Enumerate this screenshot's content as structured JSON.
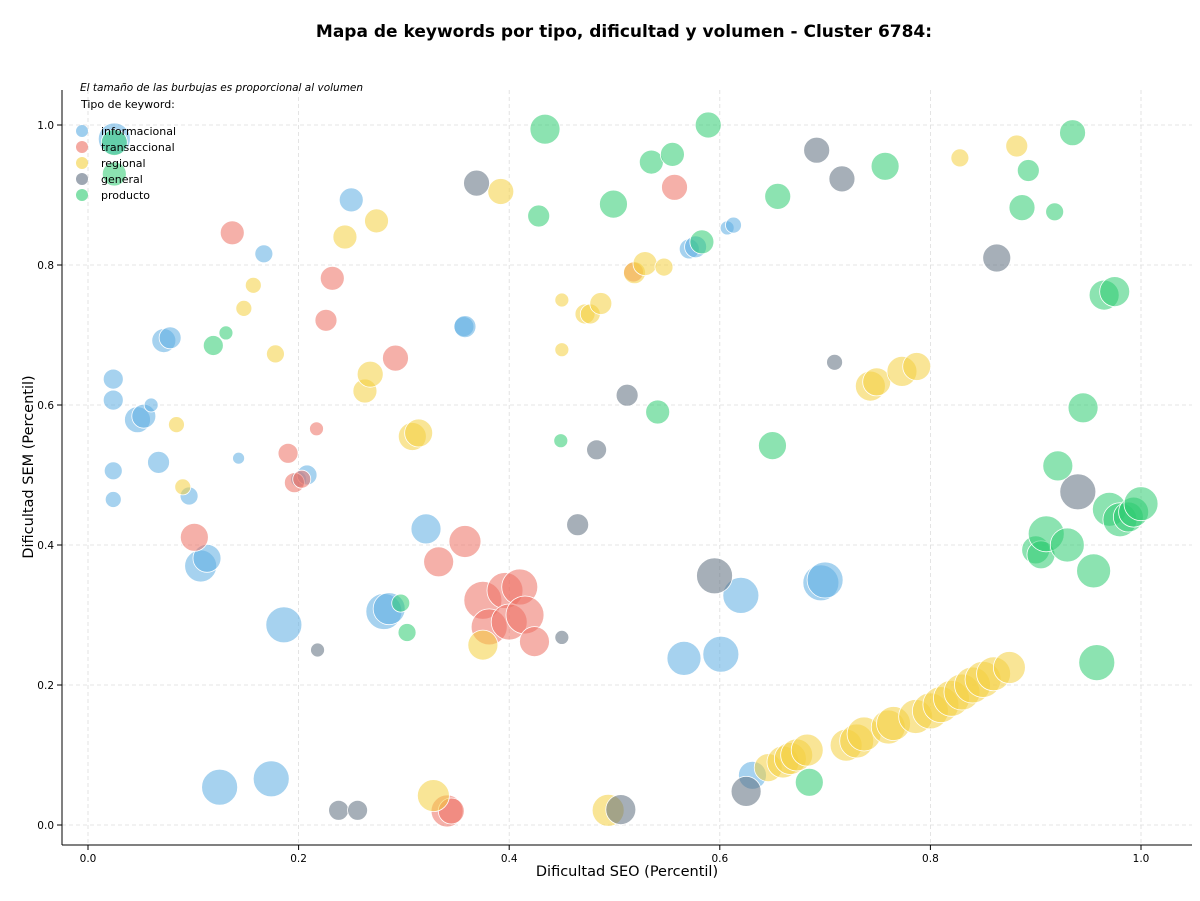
{
  "chart_data": {
    "type": "scatter",
    "title": "Mapa de keywords por tipo, dificultad y volumen - Cluster 6784:",
    "xlabel": "Dificultad SEO (Percentil)",
    "ylabel": "Dificultad SEM (Percentil)",
    "xlim": [
      -0.025,
      1.05
    ],
    "ylim": [
      -0.025,
      1.05
    ],
    "xticks": [
      "0.0",
      "0.2",
      "0.4",
      "0.6",
      "0.8",
      "1.0"
    ],
    "yticks": [
      "0.0",
      "0.2",
      "0.4",
      "0.6",
      "0.8",
      "1.0"
    ],
    "grid": true,
    "note": "El tamaño de las burbujas es proporcional al volumen",
    "legend_title": "Tipo de keyword:",
    "legend_position": "top-left",
    "series": [
      {
        "name": "informacional",
        "color": "#5DADE2",
        "points": [
          [
            0.025,
            0.98,
            16
          ],
          [
            0.024,
            0.637,
            10
          ],
          [
            0.024,
            0.607,
            10
          ],
          [
            0.024,
            0.506,
            9
          ],
          [
            0.024,
            0.465,
            8
          ],
          [
            0.047,
            0.579,
            13
          ],
          [
            0.053,
            0.584,
            12
          ],
          [
            0.06,
            0.6,
            7
          ],
          [
            0.067,
            0.518,
            11
          ],
          [
            0.072,
            0.692,
            12
          ],
          [
            0.078,
            0.696,
            11
          ],
          [
            0.096,
            0.47,
            9
          ],
          [
            0.107,
            0.37,
            16
          ],
          [
            0.113,
            0.381,
            14
          ],
          [
            0.125,
            0.054,
            18
          ],
          [
            0.143,
            0.524,
            6
          ],
          [
            0.167,
            0.816,
            9
          ],
          [
            0.174,
            0.066,
            18
          ],
          [
            0.186,
            0.286,
            18
          ],
          [
            0.2,
            0.494,
            8
          ],
          [
            0.208,
            0.5,
            10
          ],
          [
            0.25,
            0.893,
            12
          ],
          [
            0.281,
            0.305,
            18
          ],
          [
            0.286,
            0.309,
            16
          ],
          [
            0.321,
            0.423,
            15
          ],
          [
            0.357,
            0.712,
            10
          ],
          [
            0.358,
            0.712,
            11
          ],
          [
            0.566,
            0.238,
            17
          ],
          [
            0.571,
            0.823,
            10
          ],
          [
            0.577,
            0.826,
            11
          ],
          [
            0.601,
            0.244,
            18
          ],
          [
            0.607,
            0.853,
            7
          ],
          [
            0.613,
            0.857,
            8
          ],
          [
            0.62,
            0.328,
            18
          ],
          [
            0.631,
            0.071,
            14
          ],
          [
            0.696,
            0.346,
            18
          ],
          [
            0.7,
            0.35,
            18
          ]
        ]
      },
      {
        "name": "transaccional",
        "color": "#EC7063",
        "points": [
          [
            0.101,
            0.411,
            14
          ],
          [
            0.137,
            0.846,
            12
          ],
          [
            0.19,
            0.531,
            10
          ],
          [
            0.196,
            0.489,
            10
          ],
          [
            0.203,
            0.494,
            9
          ],
          [
            0.217,
            0.566,
            7
          ],
          [
            0.226,
            0.721,
            11
          ],
          [
            0.232,
            0.781,
            12
          ],
          [
            0.292,
            0.667,
            13
          ],
          [
            0.333,
            0.376,
            15
          ],
          [
            0.341,
            0.02,
            16
          ],
          [
            0.345,
            0.02,
            13
          ],
          [
            0.358,
            0.405,
            16
          ],
          [
            0.375,
            0.321,
            19
          ],
          [
            0.381,
            0.283,
            18
          ],
          [
            0.396,
            0.335,
            18
          ],
          [
            0.4,
            0.29,
            18
          ],
          [
            0.41,
            0.34,
            18
          ],
          [
            0.415,
            0.3,
            19
          ],
          [
            0.424,
            0.262,
            15
          ],
          [
            0.557,
            0.911,
            13
          ],
          [
            0.518,
            0.79,
            10
          ]
        ]
      },
      {
        "name": "regional",
        "color": "#F4D03F",
        "points": [
          [
            0.084,
            0.572,
            8
          ],
          [
            0.09,
            0.483,
            8
          ],
          [
            0.148,
            0.738,
            8
          ],
          [
            0.157,
            0.771,
            8
          ],
          [
            0.178,
            0.673,
            9
          ],
          [
            0.244,
            0.84,
            12
          ],
          [
            0.274,
            0.863,
            12
          ],
          [
            0.263,
            0.62,
            12
          ],
          [
            0.268,
            0.644,
            13
          ],
          [
            0.308,
            0.555,
            14
          ],
          [
            0.314,
            0.56,
            14
          ],
          [
            0.328,
            0.042,
            16
          ],
          [
            0.375,
            0.257,
            15
          ],
          [
            0.392,
            0.905,
            13
          ],
          [
            0.45,
            0.75,
            7
          ],
          [
            0.45,
            0.679,
            7
          ],
          [
            0.472,
            0.73,
            10
          ],
          [
            0.477,
            0.73,
            10
          ],
          [
            0.487,
            0.745,
            11
          ],
          [
            0.494,
            0.021,
            16
          ],
          [
            0.519,
            0.789,
            11
          ],
          [
            0.529,
            0.802,
            12
          ],
          [
            0.547,
            0.797,
            9
          ],
          [
            0.646,
            0.082,
            14
          ],
          [
            0.66,
            0.09,
            16
          ],
          [
            0.667,
            0.095,
            16
          ],
          [
            0.673,
            0.1,
            16
          ],
          [
            0.683,
            0.107,
            16
          ],
          [
            0.72,
            0.114,
            16
          ],
          [
            0.73,
            0.12,
            17
          ],
          [
            0.737,
            0.13,
            17
          ],
          [
            0.743,
            0.627,
            15
          ],
          [
            0.749,
            0.633,
            14
          ],
          [
            0.76,
            0.14,
            17
          ],
          [
            0.765,
            0.145,
            17
          ],
          [
            0.773,
            0.648,
            15
          ],
          [
            0.787,
            0.655,
            14
          ],
          [
            0.786,
            0.155,
            17
          ],
          [
            0.8,
            0.163,
            18
          ],
          [
            0.81,
            0.172,
            18
          ],
          [
            0.82,
            0.181,
            18
          ],
          [
            0.83,
            0.19,
            18
          ],
          [
            0.84,
            0.2,
            18
          ],
          [
            0.85,
            0.208,
            18
          ],
          [
            0.86,
            0.216,
            17
          ],
          [
            0.875,
            0.225,
            16
          ],
          [
            0.828,
            0.953,
            9
          ],
          [
            0.882,
            0.97,
            11
          ]
        ]
      },
      {
        "name": "general",
        "color": "#5D6D7E",
        "points": [
          [
            0.218,
            0.25,
            7
          ],
          [
            0.238,
            0.021,
            10
          ],
          [
            0.256,
            0.021,
            10
          ],
          [
            0.369,
            0.917,
            13
          ],
          [
            0.45,
            0.268,
            7
          ],
          [
            0.465,
            0.429,
            11
          ],
          [
            0.483,
            0.536,
            10
          ],
          [
            0.512,
            0.614,
            11
          ],
          [
            0.506,
            0.022,
            15
          ],
          [
            0.595,
            0.356,
            18
          ],
          [
            0.625,
            0.048,
            15
          ],
          [
            0.692,
            0.964,
            13
          ],
          [
            0.709,
            0.661,
            8
          ],
          [
            0.716,
            0.923,
            13
          ],
          [
            0.863,
            0.81,
            14
          ],
          [
            0.94,
            0.476,
            18
          ]
        ]
      },
      {
        "name": "producto",
        "color": "#2ECC71",
        "points": [
          [
            0.025,
            0.975,
            13
          ],
          [
            0.025,
            0.93,
            12
          ],
          [
            0.119,
            0.685,
            10
          ],
          [
            0.131,
            0.703,
            7
          ],
          [
            0.297,
            0.317,
            9
          ],
          [
            0.303,
            0.275,
            9
          ],
          [
            0.428,
            0.87,
            11
          ],
          [
            0.434,
            0.994,
            15
          ],
          [
            0.449,
            0.549,
            7
          ],
          [
            0.499,
            0.887,
            14
          ],
          [
            0.535,
            0.947,
            12
          ],
          [
            0.541,
            0.59,
            12
          ],
          [
            0.555,
            0.958,
            12
          ],
          [
            0.583,
            0.833,
            12
          ],
          [
            0.589,
            1.0,
            13
          ],
          [
            0.65,
            0.542,
            14
          ],
          [
            0.655,
            0.898,
            13
          ],
          [
            0.685,
            0.061,
            14
          ],
          [
            0.757,
            0.941,
            14
          ],
          [
            0.887,
            0.882,
            13
          ],
          [
            0.893,
            0.935,
            11
          ],
          [
            0.918,
            0.876,
            9
          ],
          [
            0.935,
            0.989,
            13
          ],
          [
            0.945,
            0.596,
            15
          ],
          [
            0.921,
            0.513,
            15
          ],
          [
            0.9,
            0.393,
            14
          ],
          [
            0.905,
            0.386,
            14
          ],
          [
            0.91,
            0.416,
            18
          ],
          [
            0.93,
            0.4,
            17
          ],
          [
            0.955,
            0.363,
            17
          ],
          [
            0.958,
            0.232,
            18
          ],
          [
            0.965,
            0.757,
            15
          ],
          [
            0.975,
            0.762,
            15
          ],
          [
            0.97,
            0.451,
            17
          ],
          [
            0.98,
            0.436,
            17
          ],
          [
            0.988,
            0.44,
            15
          ],
          [
            0.993,
            0.447,
            15
          ],
          [
            1.0,
            0.459,
            17
          ]
        ]
      }
    ]
  }
}
